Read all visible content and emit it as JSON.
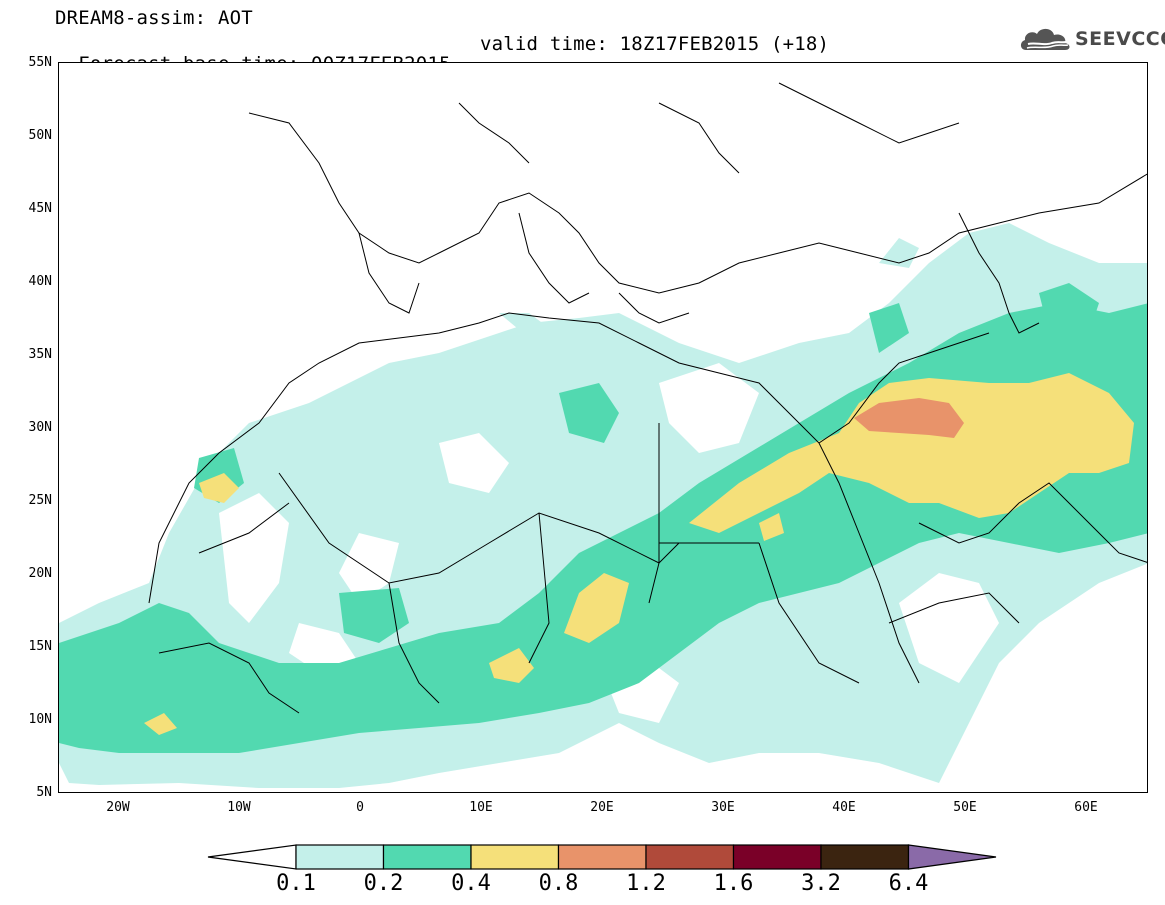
{
  "header": {
    "model_line": "DREAM8-assim: AOT",
    "base_time_line": "Forecast base time: 00Z17FEB2015",
    "valid_time_line": "valid time: 18Z17FEB2015 (+18)"
  },
  "logo": {
    "text": "SEEVCCC",
    "icon": "cloud-icon"
  },
  "axes": {
    "lat_labels": [
      "55N",
      "50N",
      "45N",
      "40N",
      "35N",
      "30N",
      "25N",
      "20N",
      "15N",
      "10N",
      "5N"
    ],
    "lon_labels": [
      "20W",
      "10W",
      "0",
      "10E",
      "20E",
      "30E",
      "40E",
      "50E",
      "60E"
    ]
  },
  "colorbar": {
    "labels": [
      "0.1",
      "0.2",
      "0.4",
      "0.8",
      "1.2",
      "1.6",
      "3.2",
      "6.4"
    ],
    "colors": [
      "#ffffff",
      "#c4f0ea",
      "#52d9b0",
      "#f5e07a",
      "#e8936a",
      "#b04a3a",
      "#7a0028",
      "#3b2410",
      "#8a6aa8"
    ]
  }
}
